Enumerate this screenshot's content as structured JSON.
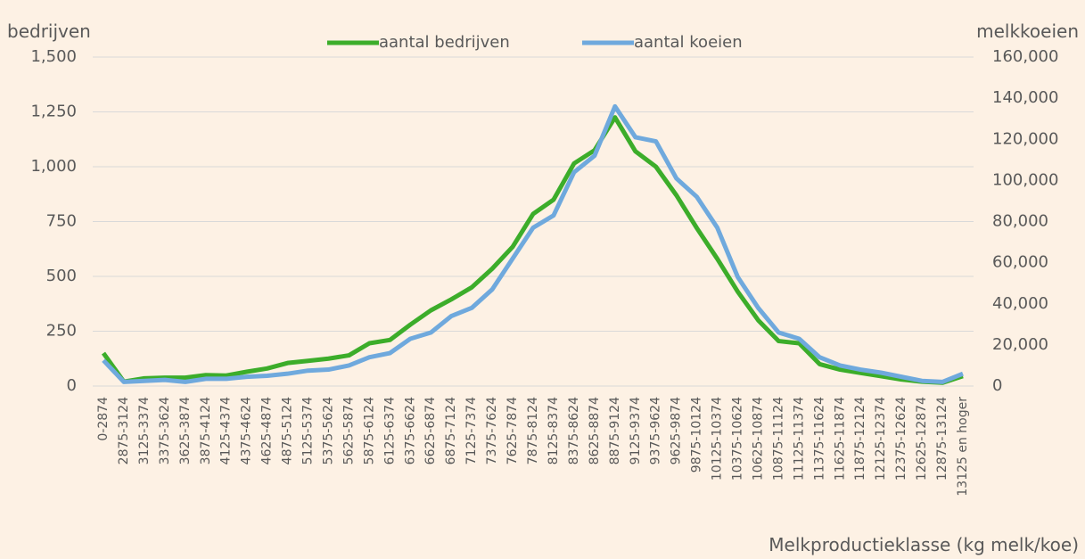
{
  "chart_data": {
    "type": "line",
    "y_label": "bedrijven",
    "y2_label": "melkkoeien",
    "x_label": "Melkproductieklasse (kg melk/koe)",
    "categories": [
      "0-2874",
      "2875-3124",
      "3125-3374",
      "3375-3624",
      "3625-3874",
      "3875-4124",
      "4125-4374",
      "4375-4624",
      "4625-4874",
      "4875-5124",
      "5125-5374",
      "5375-5624",
      "5625-5874",
      "5875-6124",
      "6125-6374",
      "6375-6624",
      "6625-6874",
      "6875-7124",
      "7125-7374",
      "7375-7624",
      "7625-7874",
      "7875-8124",
      "8125-8374",
      "8375-8624",
      "8625-8874",
      "8875-9124",
      "9125-9374",
      "9375-9624",
      "9625-9874",
      "9875-10124",
      "10125-10374",
      "10375-10624",
      "10625-10874",
      "10875-11124",
      "11125-11374",
      "11375-11624",
      "11625-11874",
      "11875-12124",
      "12125-12374",
      "12375-12624",
      "12625-12874",
      "12875-13124",
      "13125 en hoger"
    ],
    "series": [
      {
        "name": "aantal bedrijven",
        "color": "#3cad2a",
        "axis": "y",
        "values": [
          150,
          20,
          35,
          38,
          38,
          50,
          48,
          65,
          80,
          105,
          115,
          125,
          140,
          195,
          210,
          280,
          345,
          395,
          450,
          535,
          635,
          785,
          850,
          1015,
          1075,
          1225,
          1070,
          1000,
          870,
          720,
          580,
          430,
          300,
          205,
          195,
          100,
          75,
          60,
          45,
          30,
          20,
          15,
          45
        ]
      },
      {
        "name": "aantal koeien",
        "color": "#6fa9dd",
        "axis": "y2",
        "values": [
          12500,
          2000,
          2500,
          3000,
          2000,
          3500,
          3500,
          4500,
          5000,
          6000,
          7500,
          8000,
          10000,
          14000,
          16000,
          23000,
          26000,
          34000,
          38000,
          47000,
          62000,
          77000,
          83000,
          104000,
          112000,
          136000,
          121000,
          119000,
          101000,
          92000,
          77000,
          53000,
          38000,
          26000,
          23000,
          14000,
          10000,
          8000,
          6500,
          4500,
          2500,
          2000,
          6000
        ]
      }
    ],
    "ylim": [
      0,
      1500
    ],
    "yticks": [
      0,
      250,
      500,
      750,
      {
        "value": 1000,
        "label": "1,000"
      },
      {
        "value": 1250,
        "label": "1,250"
      },
      {
        "value": 1500,
        "label": "1,500"
      }
    ],
    "y2lim": [
      0,
      160000
    ],
    "y2ticks": [
      0,
      {
        "value": 20000,
        "label": "20,000"
      },
      {
        "value": 40000,
        "label": "40,000"
      },
      {
        "value": 60000,
        "label": "60,000"
      },
      {
        "value": 80000,
        "label": "80,000"
      },
      {
        "value": 100000,
        "label": "100,000"
      },
      {
        "value": 120000,
        "label": "120,000"
      },
      {
        "value": 140000,
        "label": "140,000"
      },
      {
        "value": 160000,
        "label": "160,000"
      }
    ],
    "grid": true,
    "legend": "top"
  }
}
